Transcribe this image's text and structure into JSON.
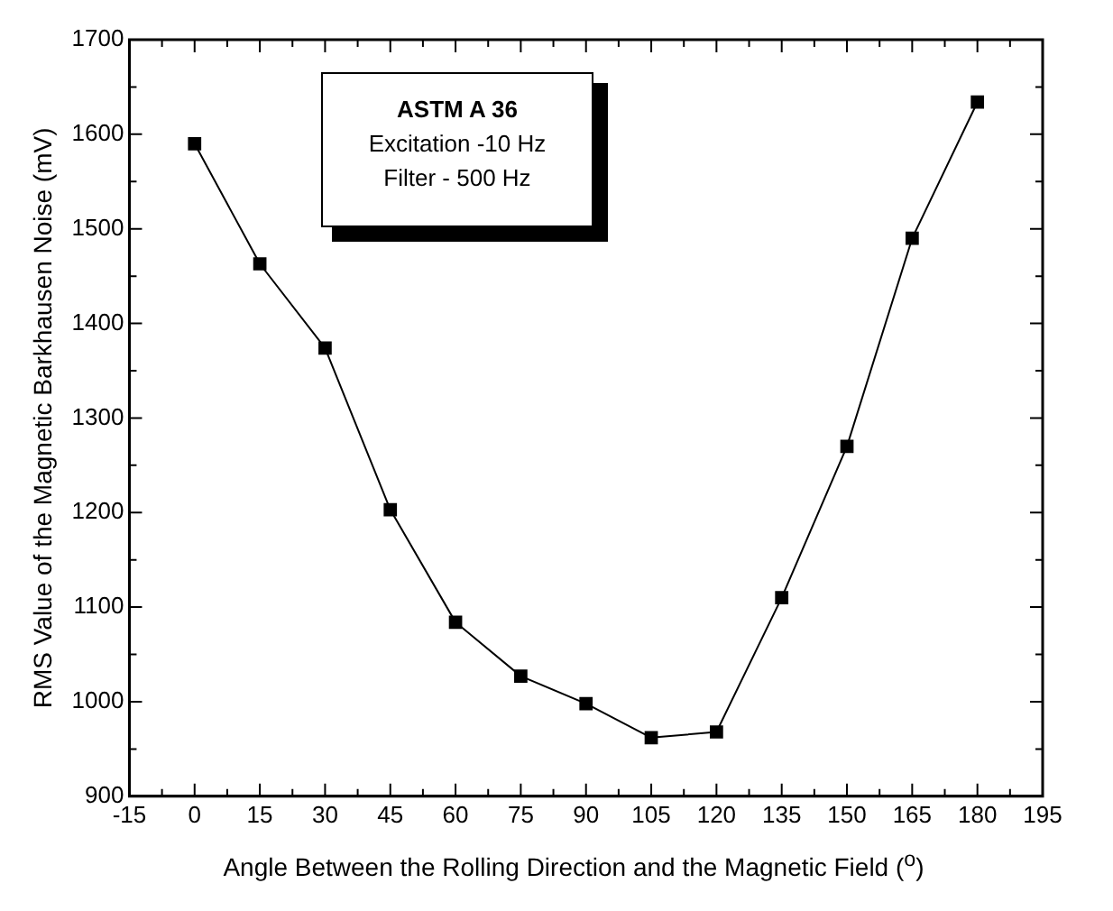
{
  "chart_data": {
    "type": "line",
    "xlabel": "Angle Between the Rolling Direction and the Magnetic Field ($^{o}$)",
    "ylabel": "RMS Value of the Magnetic Barkhausen Noise (mV)",
    "annotations": [
      "ASTM A 36",
      "Excitation -10 Hz",
      "Filter - 500 Hz"
    ],
    "x": [
      0,
      15,
      30,
      45,
      60,
      75,
      90,
      105,
      120,
      135,
      150,
      165,
      180
    ],
    "series": [
      {
        "color": "#000000",
        "values": [
          1590,
          1463,
          1374,
          1203,
          1084,
          1027,
          998,
          962,
          968,
          1110,
          1270,
          1490,
          1634
        ]
      }
    ],
    "xlim": [
      -15,
      195
    ],
    "xticks": [
      -15,
      0,
      15,
      30,
      45,
      60,
      75,
      90,
      105,
      120,
      135,
      150,
      165,
      180,
      195
    ],
    "ylim": [
      900,
      1700
    ],
    "yticks": [
      900,
      1000,
      1100,
      1200,
      1300,
      1400,
      1500,
      1600,
      1700
    ],
    "grid": false,
    "legend": false,
    "marker": "square",
    "line_style": "solid"
  }
}
